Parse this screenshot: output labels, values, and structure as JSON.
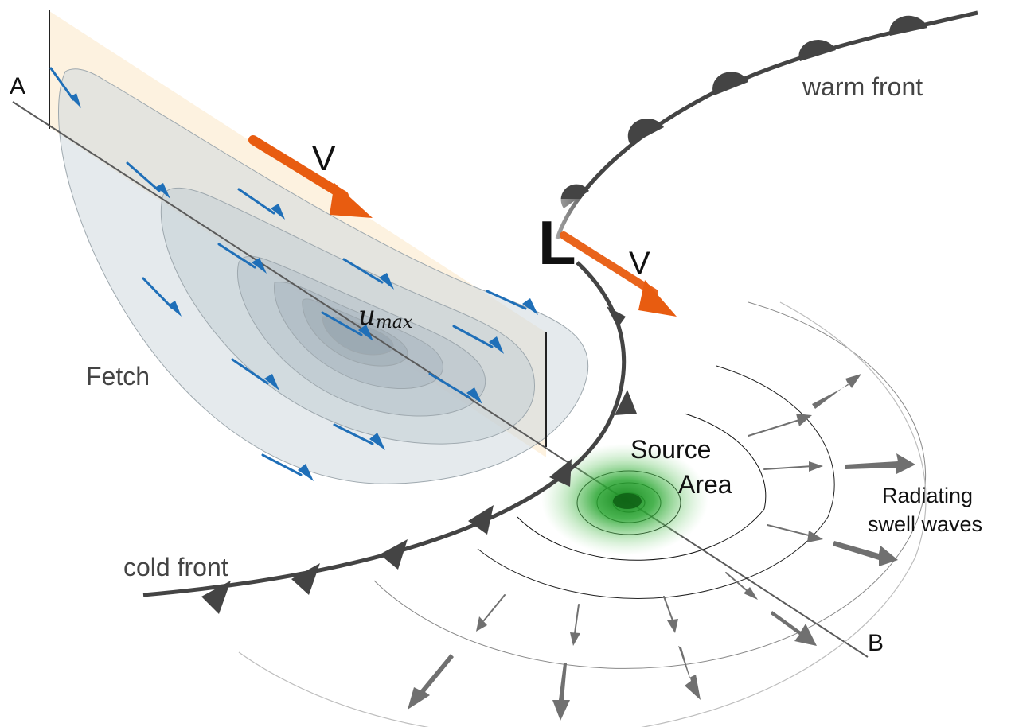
{
  "labels": {
    "point_a": "A",
    "point_b": "B",
    "wind_v_fetch": "V",
    "wind_v_low": "V",
    "low_symbol": "L",
    "warm_front": "warm front",
    "cold_front": "cold front",
    "fetch": "Fetch",
    "u_main": "u",
    "u_sub": "max",
    "source_line1": "Source",
    "source_line2": "Area",
    "swell_line1": "Radiating",
    "swell_line2": "swell waves"
  },
  "colors": {
    "wind_arrow": "#e85c10",
    "fetch_arrow": "#1f6fb8",
    "front": "#4a4a4a",
    "source": "#1e9a2a",
    "swell_arrow": "#707070",
    "fetch_plane": "#fdf1dd",
    "fetch_contour": "#b8c2c8"
  }
}
